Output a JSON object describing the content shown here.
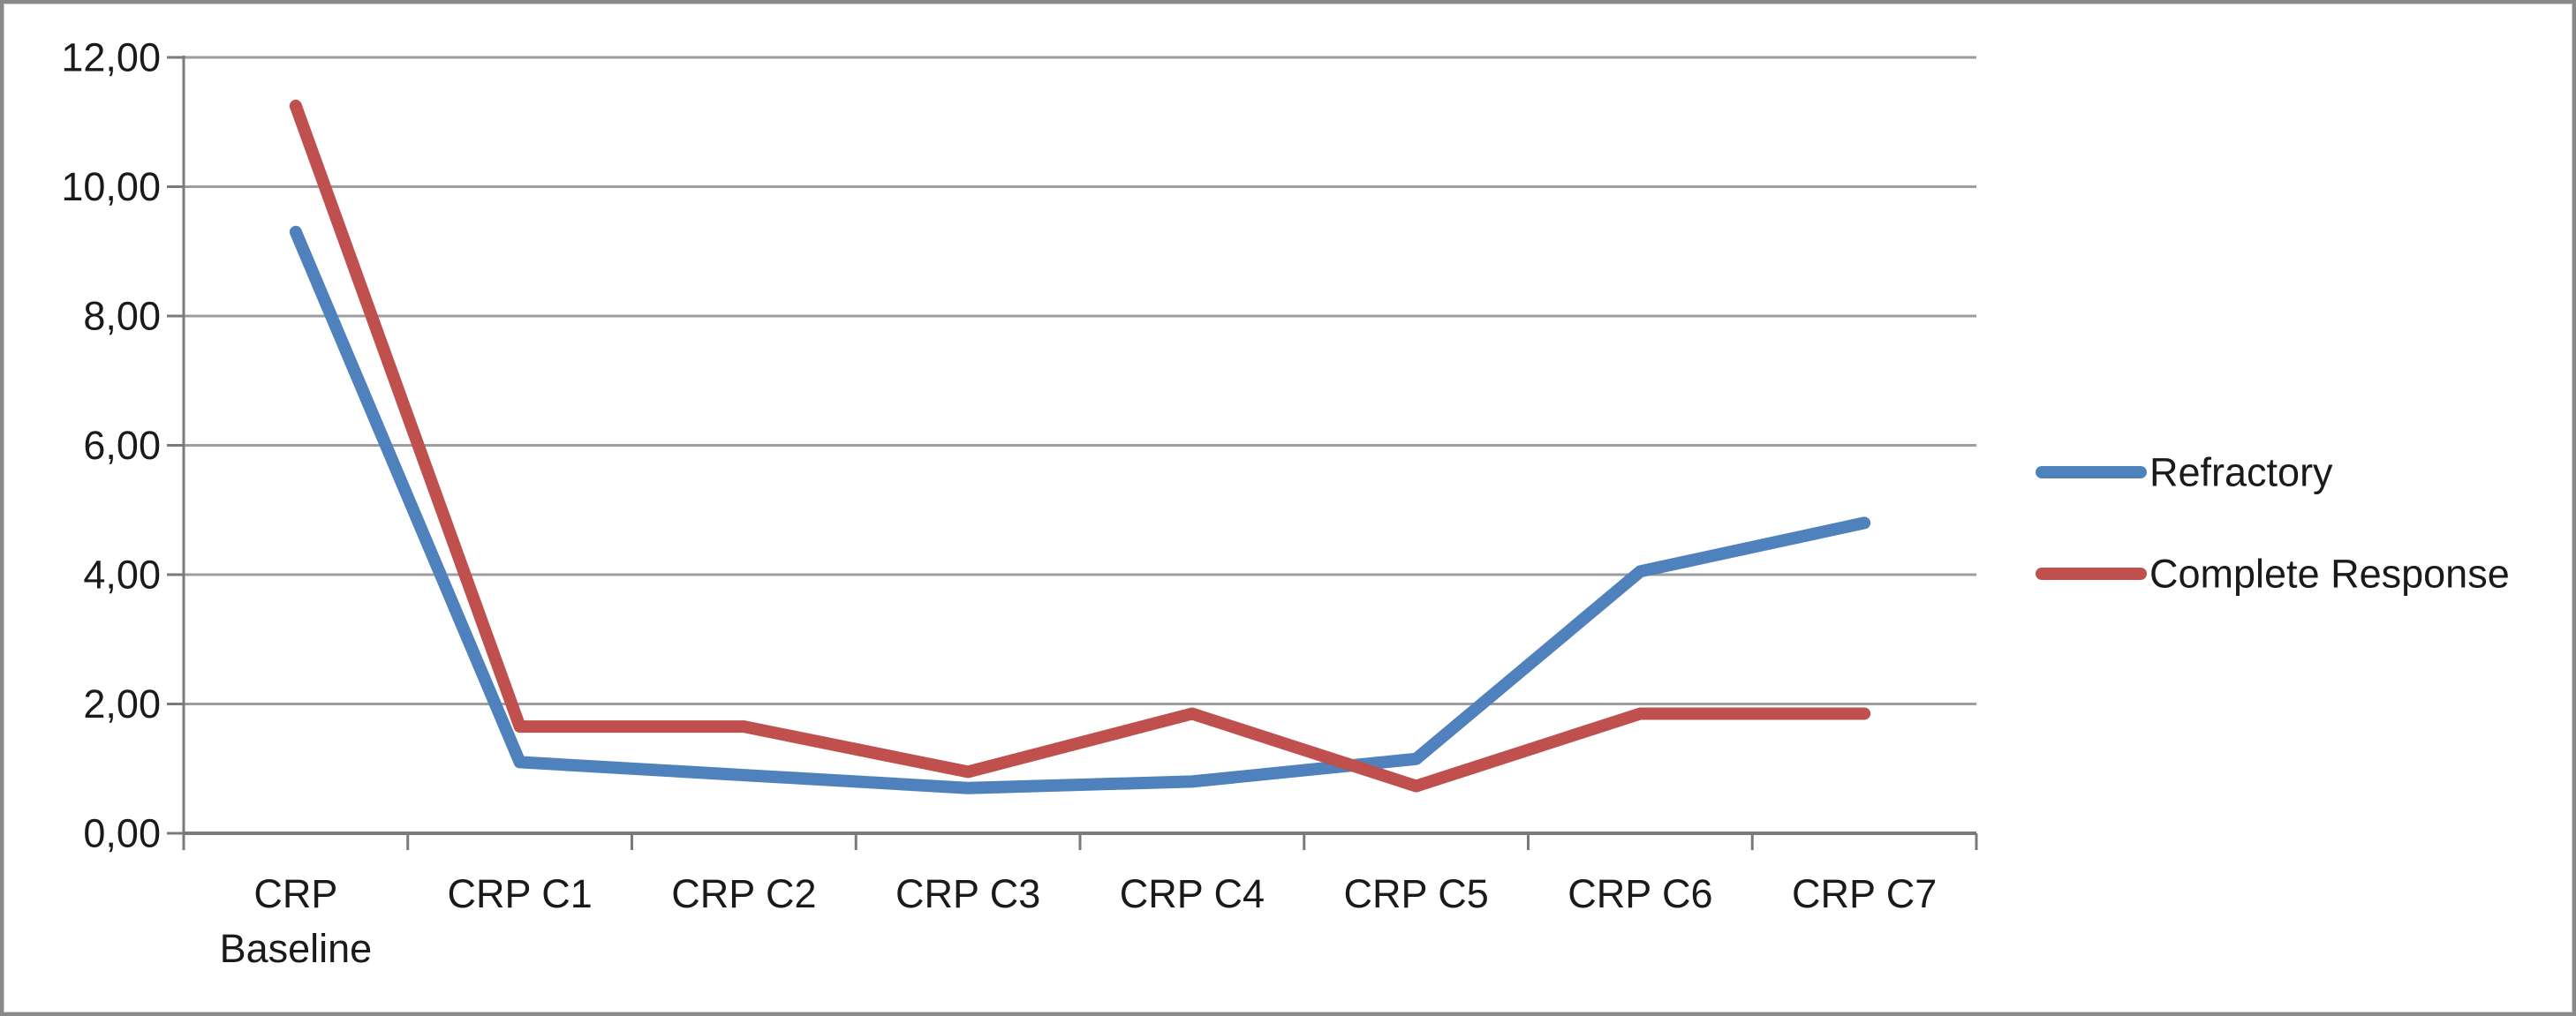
{
  "window": {
    "background_color": "#ffffff",
    "border_color": "#898989"
  },
  "chart_data": {
    "type": "line",
    "title": "",
    "xlabel": "",
    "ylabel": "",
    "categories": [
      "CRP Baseline",
      "CRP C1",
      "CRP C2",
      "CRP C3",
      "CRP C4",
      "CRP C5",
      "CRP C6",
      "CRP C7"
    ],
    "x_tick_lines": [
      [
        "CRP",
        "Baseline"
      ],
      [
        "CRP C1"
      ],
      [
        "CRP C2"
      ],
      [
        "CRP C3"
      ],
      [
        "CRP C4"
      ],
      [
        "CRP C5"
      ],
      [
        "CRP C6"
      ],
      [
        "CRP C7"
      ]
    ],
    "series": [
      {
        "name": "Refractory",
        "color": "#4F81BD",
        "values": [
          9.3,
          1.1,
          0.9,
          0.7,
          0.8,
          1.15,
          4.05,
          4.8
        ]
      },
      {
        "name": "Complete Response",
        "color": "#C0504D",
        "values": [
          11.25,
          1.65,
          1.65,
          0.95,
          1.85,
          0.73,
          1.85,
          1.85
        ]
      }
    ],
    "ylim": [
      0,
      12
    ],
    "y_tick_step": 2,
    "y_tick_labels": [
      "0,00",
      "2,00",
      "4,00",
      "6,00",
      "8,00",
      "10,00",
      "12,00"
    ],
    "decimal_separator": ",",
    "grid": true,
    "gridline_color": "#9d9d9d",
    "axis_color": "#7a7a7a",
    "text_color": "#1a1a1a",
    "legend_position": "right"
  }
}
